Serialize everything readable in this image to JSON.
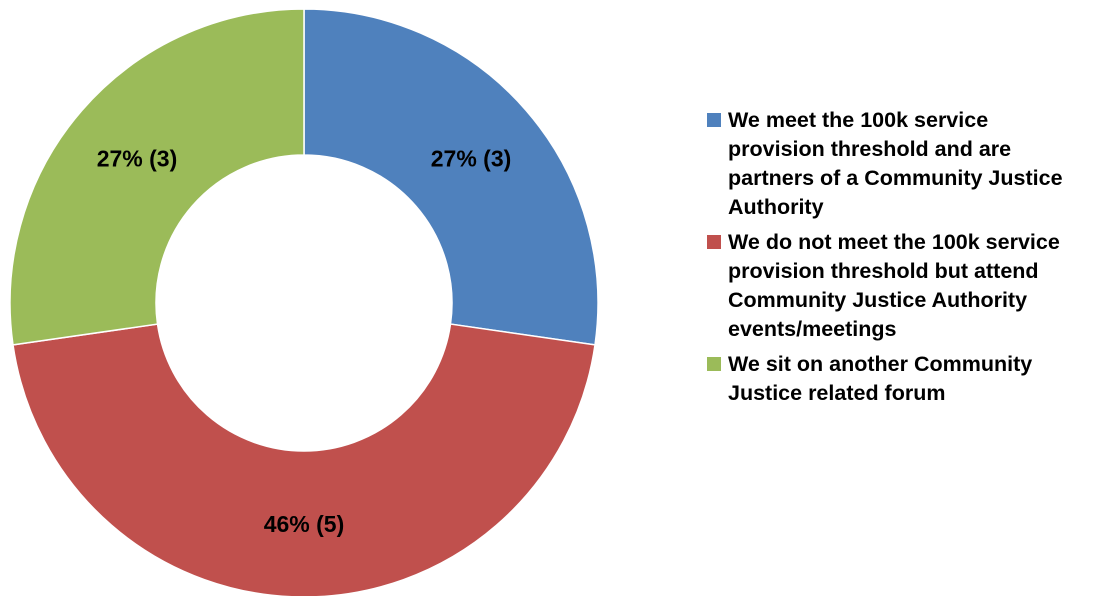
{
  "chart_data": {
    "type": "pie",
    "variant": "donut",
    "title": "",
    "legend_position": "right",
    "slices": [
      {
        "label": "We meet the 100k service provision threshold and are partners of a Community Justice Authority",
        "value": 3,
        "percent": 27,
        "data_label": "27% (3)",
        "color": "#4F81BD"
      },
      {
        "label": "We do not meet the 100k service provision threshold but attend Community Justice Authority events/meetings",
        "value": 5,
        "percent": 46,
        "data_label": "46% (5)",
        "color": "#C0504D"
      },
      {
        "label": "We sit on another Community Justice related forum",
        "value": 3,
        "percent": 27,
        "data_label": "27% (3)",
        "color": "#9BBB59"
      }
    ]
  }
}
